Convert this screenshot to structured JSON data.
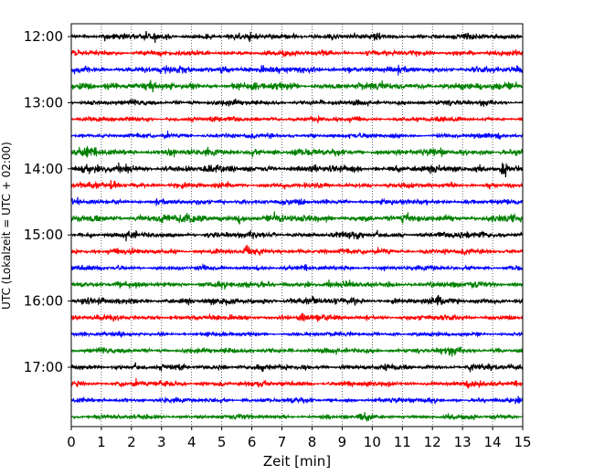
{
  "chart_data": {
    "type": "line",
    "title": "",
    "xlabel": "Zeit  [min]",
    "ylabel": "UTC (Lokalzeit = UTC + 02:00)",
    "xlim": [
      0,
      15
    ],
    "x_ticks": [
      "0",
      "1",
      "2",
      "3",
      "4",
      "5",
      "6",
      "7",
      "8",
      "9",
      "10",
      "11",
      "12",
      "13",
      "14",
      "15"
    ],
    "y_ticks": [
      "12:00",
      "13:00",
      "14:00",
      "15:00",
      "16:00",
      "17:00"
    ],
    "grid": {
      "x": true,
      "y": false,
      "style": "dotted"
    },
    "rows_per_hour": 4,
    "row_minutes": 15,
    "start_time": "12:00",
    "end_time": "18:00",
    "series_colors": [
      "#000000",
      "#ff0000",
      "#0000ff",
      "#008000"
    ],
    "row_amplitude": [
      0.9,
      0.8,
      1.0,
      1.1,
      0.8,
      0.7,
      0.7,
      1.0,
      1.1,
      0.8,
      0.8,
      1.1,
      0.9,
      0.8,
      0.7,
      0.9,
      1.0,
      0.8,
      0.6,
      0.8,
      0.8,
      0.8,
      0.7,
      0.7
    ],
    "events": [
      {
        "row": 2,
        "x": 5.0,
        "amp": 1.8
      },
      {
        "row": 3,
        "x": 0.3,
        "amp": 1.6
      },
      {
        "row": 7,
        "x": 0.4,
        "amp": 1.8
      },
      {
        "row": 8,
        "x": 14.3,
        "amp": 2.8
      },
      {
        "row": 9,
        "x": 1.3,
        "amp": 2.6
      },
      {
        "row": 11,
        "x": 5.6,
        "amp": 1.7
      },
      {
        "row": 11,
        "x": 3.0,
        "amp": 1.5
      },
      {
        "row": 13,
        "x": 5.8,
        "amp": 1.9
      },
      {
        "row": 17,
        "x": 7.6,
        "amp": 2.0
      },
      {
        "row": 19,
        "x": 12.3,
        "amp": 1.8
      },
      {
        "row": 20,
        "x": 13.2,
        "amp": 1.5
      },
      {
        "row": 23,
        "x": 9.6,
        "amp": 1.5
      }
    ]
  }
}
